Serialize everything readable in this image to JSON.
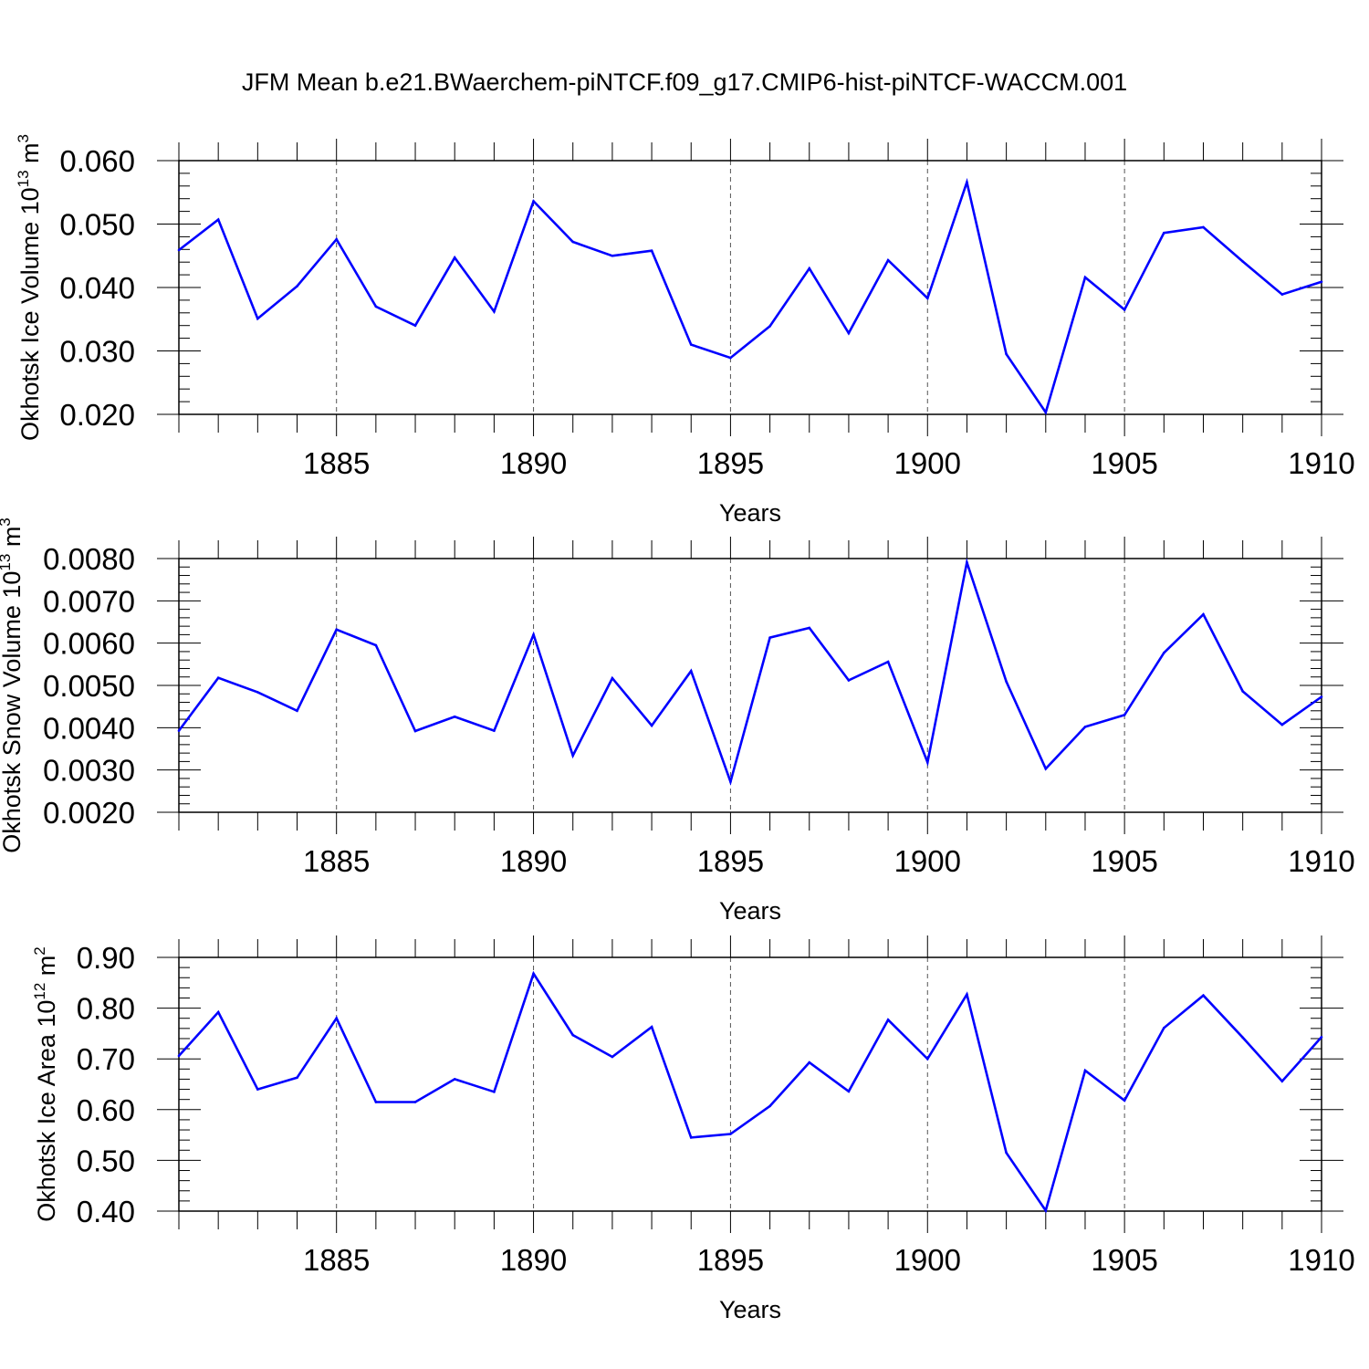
{
  "title": "JFM Mean b.e21.BWaerchem-piNTCF.f09_g17.CMIP6-hist-piNTCF-WACCM.001",
  "colors": {
    "series": "#0000ff",
    "axis": "#000000",
    "grid": "#555555"
  },
  "chart_data": [
    {
      "type": "line",
      "ylabel": {
        "main": "Okhotsk Ice Volume 10",
        "exp": "13",
        "unit": " m",
        "unit_exp": "3"
      },
      "xlabel": "Years",
      "xlim": [
        1881,
        1910
      ],
      "ylim": [
        0.02,
        0.06
      ],
      "x_ticks": [
        1885,
        1890,
        1895,
        1900,
        1905,
        1910
      ],
      "x_tick_labels": [
        "1885",
        "1890",
        "1895",
        "1900",
        "1905",
        "1910"
      ],
      "y_ticks": [
        0.02,
        0.03,
        0.04,
        0.05,
        0.06
      ],
      "y_tick_labels": [
        "0.020",
        "0.030",
        "0.040",
        "0.050",
        "0.060"
      ],
      "grid": "vertical dashed at major x ticks",
      "x": [
        1881,
        1882,
        1883,
        1884,
        1885,
        1886,
        1887,
        1888,
        1889,
        1890,
        1891,
        1892,
        1893,
        1894,
        1895,
        1896,
        1897,
        1898,
        1899,
        1900,
        1901,
        1902,
        1903,
        1904,
        1905,
        1906,
        1907,
        1908,
        1909,
        1910
      ],
      "values": [
        0.0459,
        0.0507,
        0.0351,
        0.0402,
        0.0476,
        0.037,
        0.034,
        0.0447,
        0.0362,
        0.0536,
        0.0472,
        0.045,
        0.0458,
        0.031,
        0.0289,
        0.0339,
        0.043,
        0.0328,
        0.0443,
        0.0383,
        0.0566,
        0.0295,
        0.0203,
        0.0416,
        0.0365,
        0.0486,
        0.0495,
        0.0441,
        0.0389,
        0.0409
      ]
    },
    {
      "type": "line",
      "ylabel": {
        "main": "Okhotsk Snow Volume 10",
        "exp": "13",
        "unit": " m",
        "unit_exp": "3"
      },
      "xlabel": "Years",
      "xlim": [
        1881,
        1910
      ],
      "ylim": [
        0.002,
        0.008
      ],
      "x_ticks": [
        1885,
        1890,
        1895,
        1900,
        1905,
        1910
      ],
      "x_tick_labels": [
        "1885",
        "1890",
        "1895",
        "1900",
        "1905",
        "1910"
      ],
      "y_ticks": [
        0.002,
        0.003,
        0.004,
        0.005,
        0.006,
        0.007,
        0.008
      ],
      "y_tick_labels": [
        "0.0020",
        "0.0030",
        "0.0040",
        "0.0050",
        "0.0060",
        "0.0070",
        "0.0080"
      ],
      "grid": "vertical dashed at major x ticks",
      "x": [
        1881,
        1882,
        1883,
        1884,
        1885,
        1886,
        1887,
        1888,
        1889,
        1890,
        1891,
        1892,
        1893,
        1894,
        1895,
        1896,
        1897,
        1898,
        1899,
        1900,
        1901,
        1902,
        1903,
        1904,
        1905,
        1906,
        1907,
        1908,
        1909,
        1910
      ],
      "values": [
        0.00393,
        0.00518,
        0.00484,
        0.0044,
        0.00632,
        0.00595,
        0.00392,
        0.00426,
        0.00393,
        0.0062,
        0.00334,
        0.00517,
        0.00405,
        0.00534,
        0.00272,
        0.00613,
        0.00636,
        0.00512,
        0.00556,
        0.00318,
        0.00791,
        0.00509,
        0.00303,
        0.00402,
        0.0043,
        0.00577,
        0.00668,
        0.00486,
        0.00407,
        0.00473
      ]
    },
    {
      "type": "line",
      "ylabel": {
        "main": "Okhotsk Ice Area 10",
        "exp": "12",
        "unit": " m",
        "unit_exp": "2"
      },
      "xlabel": "Years",
      "xlim": [
        1881,
        1910
      ],
      "ylim": [
        0.4,
        0.9
      ],
      "x_ticks": [
        1885,
        1890,
        1895,
        1900,
        1905,
        1910
      ],
      "x_tick_labels": [
        "1885",
        "1890",
        "1895",
        "1900",
        "1905",
        "1910"
      ],
      "y_ticks": [
        0.4,
        0.5,
        0.6,
        0.7,
        0.8,
        0.9
      ],
      "y_tick_labels": [
        "0.40",
        "0.50",
        "0.60",
        "0.70",
        "0.80",
        "0.90"
      ],
      "grid": "vertical dashed at major x ticks",
      "x": [
        1881,
        1882,
        1883,
        1884,
        1885,
        1886,
        1887,
        1888,
        1889,
        1890,
        1891,
        1892,
        1893,
        1894,
        1895,
        1896,
        1897,
        1898,
        1899,
        1900,
        1901,
        1902,
        1903,
        1904,
        1905,
        1906,
        1907,
        1908,
        1909,
        1910
      ],
      "values": [
        0.706,
        0.792,
        0.64,
        0.663,
        0.78,
        0.615,
        0.615,
        0.66,
        0.635,
        0.868,
        0.747,
        0.704,
        0.763,
        0.545,
        0.552,
        0.607,
        0.693,
        0.636,
        0.777,
        0.7,
        0.827,
        0.515,
        0.401,
        0.677,
        0.618,
        0.761,
        0.825,
        0.742,
        0.656,
        0.743
      ]
    }
  ]
}
